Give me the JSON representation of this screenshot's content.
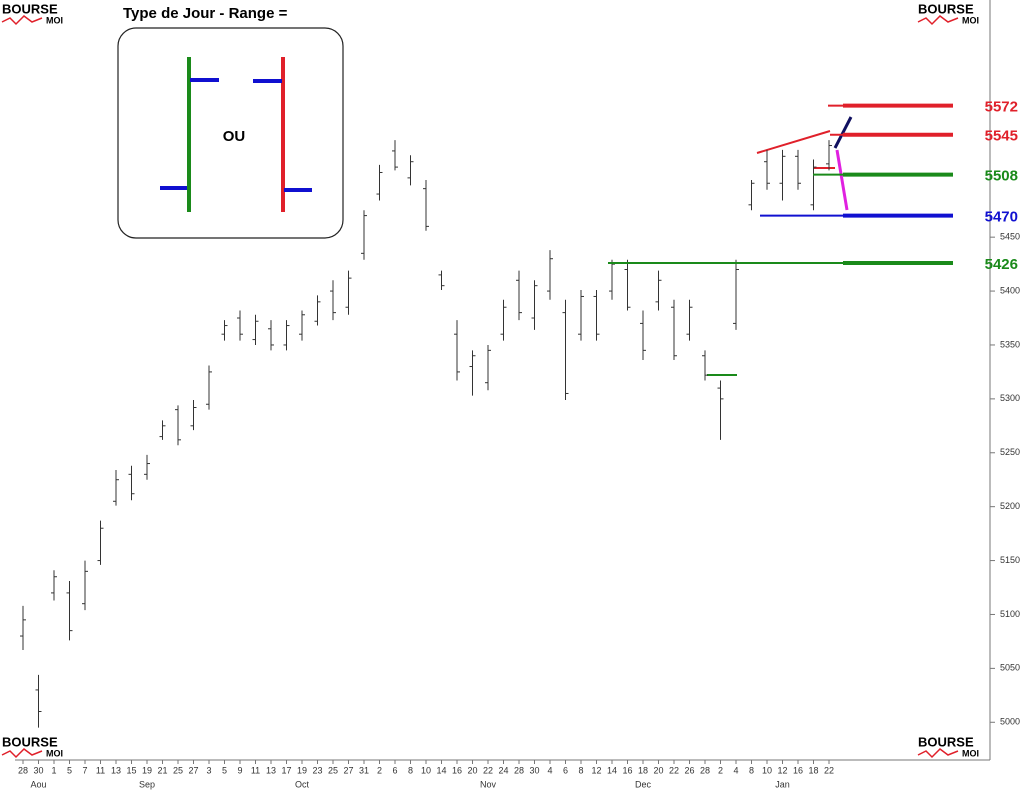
{
  "chart_data": {
    "type": "ohlc",
    "categories": [
      "28",
      "30",
      "1",
      "5",
      "7",
      "11",
      "13",
      "15",
      "19",
      "21",
      "25",
      "27",
      "3",
      "5",
      "9",
      "11",
      "13",
      "17",
      "19",
      "23",
      "25",
      "27",
      "31",
      "2",
      "6",
      "8",
      "10",
      "14",
      "16",
      "20",
      "22",
      "24",
      "28",
      "30",
      "4",
      "6",
      "8",
      "12",
      "14",
      "16",
      "18",
      "20",
      "22",
      "26",
      "28",
      "2",
      "4",
      "8",
      "10",
      "12",
      "16",
      "18",
      "22"
    ],
    "months": [
      null,
      "Aou",
      null,
      null,
      null,
      null,
      null,
      null,
      "Sep",
      null,
      null,
      null,
      null,
      null,
      null,
      null,
      null,
      null,
      "Oct",
      null,
      null,
      null,
      null,
      null,
      null,
      null,
      null,
      null,
      null,
      null,
      "Nov",
      null,
      null,
      null,
      null,
      null,
      null,
      null,
      null,
      null,
      "Dec",
      null,
      null,
      null,
      null,
      null,
      null,
      null,
      null,
      "Jan",
      null,
      null,
      null
    ],
    "high": [
      5108,
      5044,
      5141,
      5131,
      5150,
      5187,
      5234,
      5238,
      5248,
      5280,
      5294,
      5299,
      5331,
      5373,
      5382,
      5378,
      5373,
      5373,
      5382,
      5396,
      5410,
      5419,
      5475,
      5517,
      5540,
      5526,
      5503,
      5419,
      5373,
      5345,
      5350,
      5392,
      5419,
      5410,
      5438,
      5392,
      5401,
      5401,
      5429,
      5429,
      5382,
      5419,
      5392,
      5392,
      5345,
      5317,
      5429,
      5503,
      5531,
      5531,
      5531,
      5522,
      5540
    ],
    "low": [
      5067,
      4995,
      5113,
      5076,
      5104,
      5146,
      5201,
      5206,
      5225,
      5262,
      5257,
      5271,
      5290,
      5354,
      5354,
      5350,
      5345,
      5345,
      5354,
      5368,
      5373,
      5378,
      5429,
      5484,
      5512,
      5498,
      5456,
      5401,
      5317,
      5303,
      5308,
      5354,
      5373,
      5364,
      5392,
      5299,
      5354,
      5354,
      5392,
      5382,
      5336,
      5382,
      5336,
      5354,
      5317,
      5262,
      5364,
      5475,
      5494,
      5484,
      5494,
      5475,
      5512
    ],
    "open": [
      5080,
      5030,
      5120,
      5120,
      5110,
      5150,
      5205,
      5230,
      5230,
      5265,
      5290,
      5275,
      5295,
      5360,
      5375,
      5355,
      5365,
      5350,
      5360,
      5372,
      5400,
      5385,
      5435,
      5490,
      5530,
      5505,
      5495,
      5415,
      5360,
      5330,
      5315,
      5360,
      5410,
      5375,
      5400,
      5380,
      5360,
      5395,
      5400,
      5420,
      5370,
      5390,
      5385,
      5360,
      5340,
      5310,
      5370,
      5480,
      5520,
      5500,
      5525,
      5480,
      5518
    ],
    "close": [
      5095,
      5010,
      5135,
      5085,
      5140,
      5180,
      5225,
      5212,
      5240,
      5275,
      5262,
      5292,
      5325,
      5368,
      5360,
      5372,
      5350,
      5368,
      5378,
      5390,
      5380,
      5412,
      5470,
      5510,
      5515,
      5520,
      5460,
      5405,
      5325,
      5340,
      5345,
      5385,
      5380,
      5405,
      5430,
      5305,
      5395,
      5360,
      5425,
      5385,
      5345,
      5410,
      5340,
      5385,
      5322,
      5300,
      5420,
      5500,
      5500,
      5525,
      5500,
      5515,
      5535
    ],
    "ylim": [
      4965,
      5670
    ],
    "yticks": [
      5000,
      5050,
      5100,
      5150,
      5200,
      5250,
      5300,
      5350,
      5400,
      5450
    ],
    "levels": [
      {
        "value": 5572,
        "color": "#e0202a"
      },
      {
        "value": 5545,
        "color": "#e0202a"
      },
      {
        "value": 5508,
        "color": "#1a8a1a"
      },
      {
        "value": 5470,
        "color": "#1010d0"
      },
      {
        "value": 5426,
        "color": "#1a8a1a"
      }
    ]
  },
  "legend_box": {
    "title": "Type de Jour - Range =",
    "separator": "OU"
  },
  "logo": {
    "brand": "BOURSE",
    "sub": "MOI"
  }
}
